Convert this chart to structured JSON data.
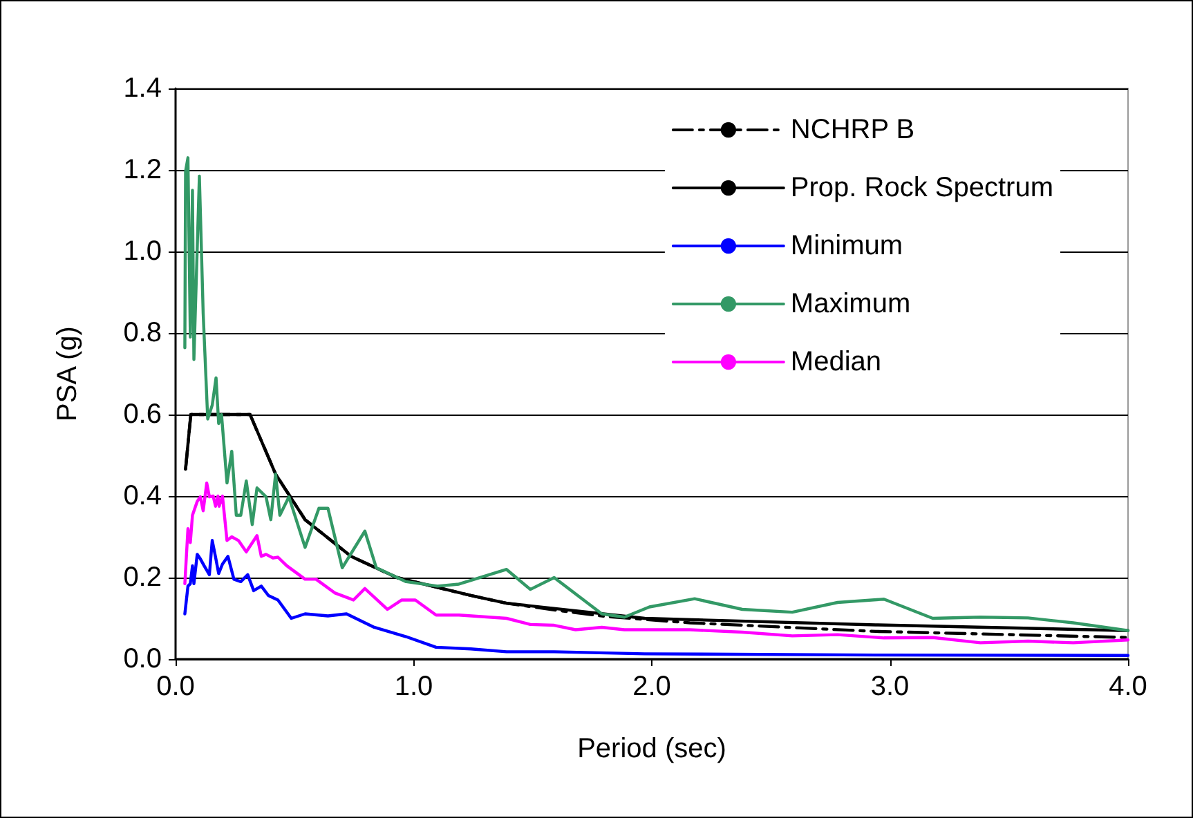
{
  "chart_data": {
    "type": "line",
    "xlabel": "Period (sec)",
    "ylabel": "PSA (g)",
    "xlim": [
      0,
      4
    ],
    "xticks": [
      {
        "value": 0,
        "label": "0.0"
      },
      {
        "value": 1,
        "label": "1.0"
      },
      {
        "value": 2,
        "label": "2.0"
      },
      {
        "value": 3,
        "label": "3.0"
      },
      {
        "value": 4,
        "label": "4.0"
      }
    ],
    "ylim": [
      0,
      1.4
    ],
    "yticks": [
      {
        "value": 0,
        "label": "0.0"
      },
      {
        "value": 0.2,
        "label": "0.2"
      },
      {
        "value": 0.4,
        "label": "0.4"
      },
      {
        "value": 0.6,
        "label": "0.6"
      },
      {
        "value": 0.8,
        "label": "0.8"
      },
      {
        "value": 1.0,
        "label": "1.0"
      },
      {
        "value": 1.2,
        "label": "1.2"
      },
      {
        "value": 1.4,
        "label": "1.4"
      }
    ],
    "grid": "y",
    "legend": "top right",
    "marker": "none",
    "series": [
      {
        "name": "NCHRP B",
        "color": "#000000",
        "line_style": "dashed",
        "x": [
          0.042,
          0.064,
          0.313,
          0.42,
          0.544,
          0.737,
          0.93,
          1.24,
          1.39,
          1.6,
          1.8,
          2.16,
          2.94,
          4.0
        ],
        "values": [
          0.466,
          0.6,
          0.6,
          0.454,
          0.342,
          0.252,
          0.2,
          0.156,
          0.137,
          0.12,
          0.105,
          0.089,
          0.068,
          0.053
        ]
      },
      {
        "name": "Prop. Rock Spectrum",
        "color": "#000000",
        "line_style": "solid",
        "x": [
          0.042,
          0.064,
          0.313,
          0.42,
          0.544,
          0.737,
          0.93,
          1.24,
          1.39,
          1.97,
          2.94,
          4.0
        ],
        "values": [
          0.466,
          0.6,
          0.6,
          0.454,
          0.342,
          0.252,
          0.2,
          0.156,
          0.137,
          0.1,
          0.084,
          0.07
        ]
      },
      {
        "name": "Minimum",
        "color": "#0000ff",
        "line_style": "solid",
        "x": [
          0.039,
          0.052,
          0.062,
          0.071,
          0.077,
          0.091,
          0.104,
          0.12,
          0.142,
          0.154,
          0.168,
          0.181,
          0.197,
          0.22,
          0.245,
          0.274,
          0.303,
          0.328,
          0.36,
          0.39,
          0.43,
          0.486,
          0.544,
          0.64,
          0.718,
          0.834,
          0.968,
          1.094,
          1.24,
          1.39,
          1.59,
          1.97,
          2.94,
          4.0
        ],
        "values": [
          0.111,
          0.179,
          0.185,
          0.229,
          0.185,
          0.257,
          0.246,
          0.229,
          0.207,
          0.291,
          0.25,
          0.21,
          0.233,
          0.252,
          0.196,
          0.19,
          0.207,
          0.168,
          0.179,
          0.156,
          0.145,
          0.1,
          0.111,
          0.106,
          0.111,
          0.078,
          0.055,
          0.029,
          0.025,
          0.018,
          0.018,
          0.013,
          0.01,
          0.009
        ]
      },
      {
        "name": "Maximum",
        "color": "#339966",
        "line_style": "solid",
        "x": [
          0.039,
          0.042,
          0.052,
          0.062,
          0.071,
          0.077,
          0.1,
          0.116,
          0.135,
          0.154,
          0.17,
          0.181,
          0.193,
          0.216,
          0.236,
          0.255,
          0.274,
          0.297,
          0.322,
          0.342,
          0.38,
          0.4,
          0.42,
          0.438,
          0.476,
          0.544,
          0.602,
          0.64,
          0.7,
          0.795,
          0.843,
          0.968,
          1.1,
          1.19,
          1.39,
          1.49,
          1.59,
          1.79,
          1.885,
          1.99,
          2.18,
          2.38,
          2.59,
          2.78,
          2.975,
          3.18,
          3.38,
          3.58,
          3.77,
          4.0
        ],
        "values": [
          0.764,
          1.197,
          1.23,
          0.79,
          1.15,
          0.735,
          1.185,
          0.848,
          0.589,
          0.623,
          0.69,
          0.578,
          0.6,
          0.432,
          0.51,
          0.353,
          0.353,
          0.437,
          0.33,
          0.42,
          0.398,
          0.342,
          0.454,
          0.353,
          0.398,
          0.274,
          0.37,
          0.37,
          0.224,
          0.314,
          0.224,
          0.19,
          0.179,
          0.184,
          0.22,
          0.171,
          0.2,
          0.111,
          0.103,
          0.128,
          0.148,
          0.122,
          0.115,
          0.139,
          0.147,
          0.1,
          0.103,
          0.101,
          0.089,
          0.07
        ]
      },
      {
        "name": "Median",
        "color": "#ff00ff",
        "line_style": "solid",
        "x": [
          0.039,
          0.052,
          0.062,
          0.071,
          0.091,
          0.104,
          0.116,
          0.131,
          0.142,
          0.158,
          0.168,
          0.178,
          0.183,
          0.197,
          0.216,
          0.236,
          0.264,
          0.297,
          0.342,
          0.36,
          0.38,
          0.41,
          0.43,
          0.467,
          0.544,
          0.59,
          0.67,
          0.747,
          0.795,
          0.89,
          0.95,
          1.007,
          1.094,
          1.19,
          1.39,
          1.49,
          1.59,
          1.68,
          1.79,
          1.885,
          2.16,
          2.38,
          2.59,
          2.78,
          2.975,
          3.18,
          3.38,
          3.58,
          3.77,
          4.0
        ],
        "values": [
          0.185,
          0.32,
          0.286,
          0.353,
          0.387,
          0.398,
          0.364,
          0.432,
          0.398,
          0.4,
          0.375,
          0.4,
          0.375,
          0.4,
          0.291,
          0.3,
          0.291,
          0.263,
          0.303,
          0.252,
          0.257,
          0.248,
          0.25,
          0.229,
          0.196,
          0.196,
          0.162,
          0.145,
          0.173,
          0.122,
          0.145,
          0.145,
          0.108,
          0.108,
          0.1,
          0.085,
          0.083,
          0.072,
          0.078,
          0.072,
          0.072,
          0.066,
          0.057,
          0.06,
          0.052,
          0.053,
          0.04,
          0.044,
          0.04,
          0.047
        ]
      }
    ]
  }
}
